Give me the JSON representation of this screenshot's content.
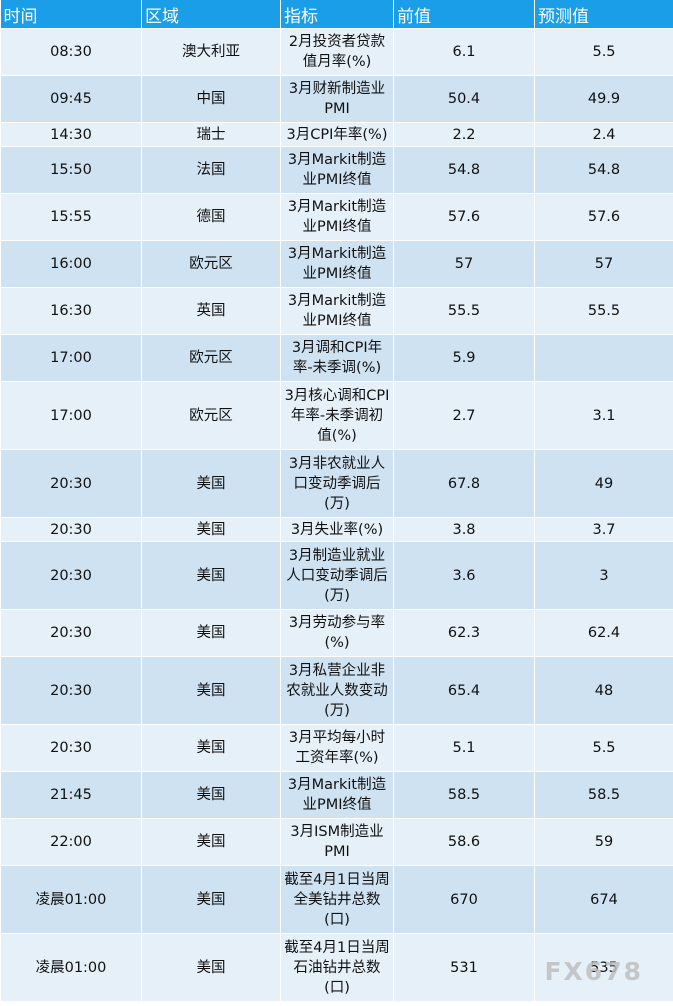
{
  "table": {
    "headers": [
      "时间",
      "区域",
      "指标",
      "前值",
      "预测值"
    ],
    "rows": [
      {
        "time": "08:30",
        "region": "澳大利亚",
        "indicator": "2月投资者贷款值月率(%)",
        "prev": "6.1",
        "forecast": "5.5"
      },
      {
        "time": "09:45",
        "region": "中国",
        "indicator": "3月财新制造业PMI",
        "prev": "50.4",
        "forecast": "49.9"
      },
      {
        "time": "14:30",
        "region": "瑞士",
        "indicator": "3月CPI年率(%)",
        "prev": "2.2",
        "forecast": "2.4"
      },
      {
        "time": "15:50",
        "region": "法国",
        "indicator": "3月Markit制造业PMI终值",
        "prev": "54.8",
        "forecast": "54.8"
      },
      {
        "time": "15:55",
        "region": "德国",
        "indicator": "3月Markit制造业PMI终值",
        "prev": "57.6",
        "forecast": "57.6"
      },
      {
        "time": "16:00",
        "region": "欧元区",
        "indicator": "3月Markit制造业PMI终值",
        "prev": "57",
        "forecast": "57"
      },
      {
        "time": "16:30",
        "region": "英国",
        "indicator": "3月Markit制造业PMI终值",
        "prev": "55.5",
        "forecast": "55.5"
      },
      {
        "time": "17:00",
        "region": "欧元区",
        "indicator": "3月调和CPI年率-未季调(%)",
        "prev": "5.9",
        "forecast": ""
      },
      {
        "time": "17:00",
        "region": "欧元区",
        "indicator": "3月核心调和CPI年率-未季调初值(%)",
        "prev": "2.7",
        "forecast": "3.1"
      },
      {
        "time": "20:30",
        "region": "美国",
        "indicator": "3月非农就业人口变动季调后(万)",
        "prev": "67.8",
        "forecast": "49"
      },
      {
        "time": "20:30",
        "region": "美国",
        "indicator": "3月失业率(%)",
        "prev": "3.8",
        "forecast": "3.7"
      },
      {
        "time": "20:30",
        "region": "美国",
        "indicator": "3月制造业就业人口变动季调后(万)",
        "prev": "3.6",
        "forecast": "3"
      },
      {
        "time": "20:30",
        "region": "美国",
        "indicator": "3月劳动参与率(%)",
        "prev": "62.3",
        "forecast": "62.4"
      },
      {
        "time": "20:30",
        "region": "美国",
        "indicator": "3月私营企业非农就业人数变动(万)",
        "prev": "65.4",
        "forecast": "48"
      },
      {
        "time": "20:30",
        "region": "美国",
        "indicator": "3月平均每小时工资年率(%)",
        "prev": "5.1",
        "forecast": "5.5"
      },
      {
        "time": "21:45",
        "region": "美国",
        "indicator": "3月Markit制造业PMI终值",
        "prev": "58.5",
        "forecast": "58.5"
      },
      {
        "time": "22:00",
        "region": "美国",
        "indicator": "3月ISM制造业PMI",
        "prev": "58.6",
        "forecast": "59"
      },
      {
        "time": "凌晨01:00",
        "region": "美国",
        "indicator": "截至4月1日当周全美钻井总数(口)",
        "prev": "670",
        "forecast": "674"
      },
      {
        "time": "凌晨01:00",
        "region": "美国",
        "indicator": "截至4月1日当周石油钻井总数(口)",
        "prev": "531",
        "forecast": "535"
      }
    ]
  },
  "watermark": "FX678"
}
